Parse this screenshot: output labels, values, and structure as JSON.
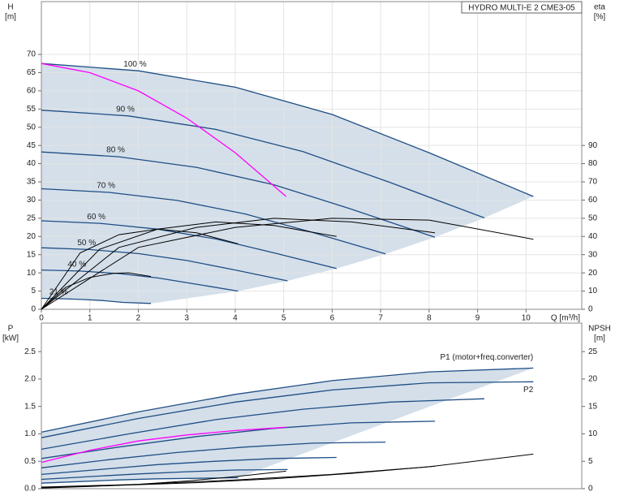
{
  "chart_data": [
    {
      "type": "line",
      "title": "HYDRO MULTI-E 2 CME3-05",
      "y_label": "H",
      "y_unit": "[m]",
      "y2_label": "eta",
      "y2_unit": "[%]",
      "x_label": "Q [m³/h]",
      "xlim": [
        0,
        11.15
      ],
      "xticks": [
        0,
        1,
        2,
        3,
        4,
        5,
        6,
        7,
        8,
        9,
        10
      ],
      "ylim": [
        0,
        84.5
      ],
      "yticks": [
        0,
        5,
        10,
        15,
        20,
        25,
        30,
        35,
        40,
        45,
        50,
        55,
        60,
        65,
        70
      ],
      "y2lim": [
        0,
        169
      ],
      "y2ticks": [
        0,
        10,
        20,
        30,
        40,
        50,
        60,
        70,
        80,
        90
      ],
      "grid": true,
      "shade_color": "#ccd9e6",
      "series": [
        {
          "name": "100 %",
          "color": "#1f4e84",
          "x": [
            0,
            2,
            4,
            6,
            8,
            10.15
          ],
          "values": [
            67.5,
            65.5,
            61,
            53.5,
            43,
            31
          ]
        },
        {
          "name": "90 %",
          "color": "#1f4e84",
          "x": [
            0,
            1.8,
            3.6,
            5.4,
            7.2,
            9.14
          ],
          "values": [
            54.7,
            53.1,
            49.4,
            43.3,
            34.8,
            25.1
          ]
        },
        {
          "name": "80 %",
          "color": "#1f4e84",
          "x": [
            0,
            1.6,
            3.2,
            4.8,
            6.4,
            8.12
          ],
          "values": [
            43.2,
            41.9,
            39,
            34.2,
            27.5,
            19.8
          ]
        },
        {
          "name": "70 %",
          "color": "#1f4e84",
          "x": [
            0,
            1.4,
            2.8,
            4.2,
            5.6,
            7.1
          ],
          "values": [
            33.1,
            32.1,
            29.9,
            26.2,
            21.1,
            15.2
          ]
        },
        {
          "name": "60 %",
          "color": "#1f4e84",
          "x": [
            0,
            1.2,
            2.4,
            3.6,
            4.8,
            6.09
          ],
          "values": [
            24.3,
            23.6,
            22,
            19.3,
            15.5,
            11.2
          ]
        },
        {
          "name": "50 %",
          "color": "#1f4e84",
          "x": [
            0,
            1,
            2,
            3,
            4,
            5.08
          ],
          "values": [
            16.9,
            16.4,
            15.3,
            13.4,
            10.8,
            7.8
          ]
        },
        {
          "name": "40 %",
          "color": "#1f4e84",
          "x": [
            0,
            0.8,
            1.6,
            2.4,
            3.2,
            4.06
          ],
          "values": [
            10.8,
            10.5,
            9.8,
            8.6,
            6.9,
            5
          ]
        },
        {
          "name": "21 %",
          "color": "#1f4e84",
          "x": [
            0,
            0.42,
            0.84,
            1.26,
            1.68,
            2.26
          ],
          "values": [
            3,
            2.9,
            2.7,
            2.4,
            1.9,
            1.6
          ]
        },
        {
          "color": "#ff00ff",
          "x": [
            0,
            1,
            2,
            3,
            4,
            5.05
          ],
          "values": [
            67.5,
            65,
            60,
            52.5,
            43,
            31
          ]
        },
        {
          "color": "#000000",
          "axis": "y2",
          "x": [
            0,
            2,
            4,
            6,
            8,
            10.15
          ],
          "values": [
            0,
            34,
            45,
            50,
            49,
            38.5
          ]
        },
        {
          "color": "#000000",
          "axis": "y2",
          "x": [
            0,
            1.6,
            3.2,
            4.8,
            6.4,
            8.12
          ],
          "values": [
            0,
            34,
            45,
            50,
            48,
            42
          ]
        },
        {
          "color": "#000000",
          "axis": "y2",
          "x": [
            0,
            1.2,
            2.4,
            3.6,
            4.8,
            6.09
          ],
          "values": [
            0,
            33,
            44,
            48,
            46,
            40
          ]
        },
        {
          "color": "#000000",
          "axis": "y2",
          "x": [
            0,
            0.8,
            1.6,
            2.4,
            3.2,
            4.06
          ],
          "values": [
            0,
            31,
            41,
            44,
            42,
            36
          ]
        },
        {
          "color": "#000000",
          "axis": "y2",
          "x": [
            0,
            0.5,
            1,
            1.5,
            1.8,
            2.26
          ],
          "values": [
            0,
            12,
            17.5,
            19.8,
            20,
            18
          ]
        }
      ]
    },
    {
      "type": "line",
      "y_label": "P",
      "y_unit": "[kW]",
      "y2_label": "NPSH",
      "y2_unit": "[m]",
      "xlim": [
        0,
        11.15
      ],
      "ylim": [
        0,
        3.02
      ],
      "yticks": [
        {
          "value": 0,
          "label": "0.0"
        },
        0.5,
        {
          "value": 1,
          "label": "1.0"
        },
        1.5,
        {
          "value": 2,
          "label": "2.0"
        },
        2.5
      ],
      "y2lim": [
        0,
        30.2
      ],
      "y2ticks": [
        0,
        5,
        10,
        15,
        20,
        25
      ],
      "grid": false,
      "shade_color": "#ccd9e6",
      "series": [
        {
          "name": "P1 (motor+freq.converter)",
          "color": "#1f4e84",
          "x": [
            0,
            2,
            4,
            6,
            8,
            10.15
          ],
          "values": [
            1.03,
            1.4,
            1.72,
            1.97,
            2.13,
            2.2
          ]
        },
        {
          "name": "P2",
          "color": "#1f4e84",
          "x": [
            0,
            2,
            4,
            6,
            8,
            10.15
          ],
          "values": [
            0.93,
            1.28,
            1.58,
            1.8,
            1.93,
            1.95
          ]
        },
        {
          "color": "#1f4e84",
          "x": [
            0,
            1.8,
            3.6,
            5.4,
            7.2,
            9.14
          ],
          "values": [
            0.72,
            1.0,
            1.26,
            1.45,
            1.58,
            1.64
          ]
        },
        {
          "color": "#1f4e84",
          "x": [
            0,
            1.6,
            3.2,
            4.8,
            6.4,
            8.12
          ],
          "values": [
            0.55,
            0.76,
            0.95,
            1.1,
            1.2,
            1.23
          ]
        },
        {
          "color": "#1f4e84",
          "x": [
            0,
            1.4,
            2.8,
            4.2,
            5.6,
            7.1
          ],
          "values": [
            0.38,
            0.53,
            0.66,
            0.76,
            0.83,
            0.85
          ]
        },
        {
          "color": "#1f4e84",
          "x": [
            0,
            1.2,
            2.4,
            3.6,
            4.8,
            6.09
          ],
          "values": [
            0.26,
            0.35,
            0.44,
            0.5,
            0.55,
            0.57
          ]
        },
        {
          "color": "#1f4e84",
          "x": [
            0,
            1,
            2,
            3,
            4,
            5.08
          ],
          "values": [
            0.17,
            0.22,
            0.27,
            0.31,
            0.34,
            0.35
          ]
        },
        {
          "color": "#1f4e84",
          "x": [
            0,
            0.8,
            1.6,
            2.4,
            3.2,
            4.06
          ],
          "values": [
            0.1,
            0.13,
            0.16,
            0.18,
            0.19,
            0.2
          ]
        },
        {
          "color": "#ff00ff",
          "x": [
            0,
            1,
            2,
            3,
            4,
            5.05
          ],
          "values": [
            0.48,
            0.7,
            0.87,
            0.98,
            1.06,
            1.12
          ]
        },
        {
          "color": "#000000",
          "axis": "y2",
          "x": [
            0,
            2,
            4,
            6,
            8,
            10.15
          ],
          "values": [
            0.3,
            0.8,
            1.6,
            2.6,
            4,
            6.3
          ]
        },
        {
          "color": "#000000",
          "axis": "y2",
          "x": [
            0,
            1.6,
            3.2,
            4.8,
            6.4,
            8.12
          ],
          "values": [
            0.2,
            0.6,
            1.1,
            1.8,
            2.8,
            4.1
          ]
        },
        {
          "color": "#000000",
          "axis": "y2",
          "x": [
            0,
            1,
            2,
            3,
            4,
            5.05
          ],
          "values": [
            0.1,
            0.4,
            0.8,
            1.4,
            2.2,
            3.2
          ]
        }
      ]
    }
  ]
}
